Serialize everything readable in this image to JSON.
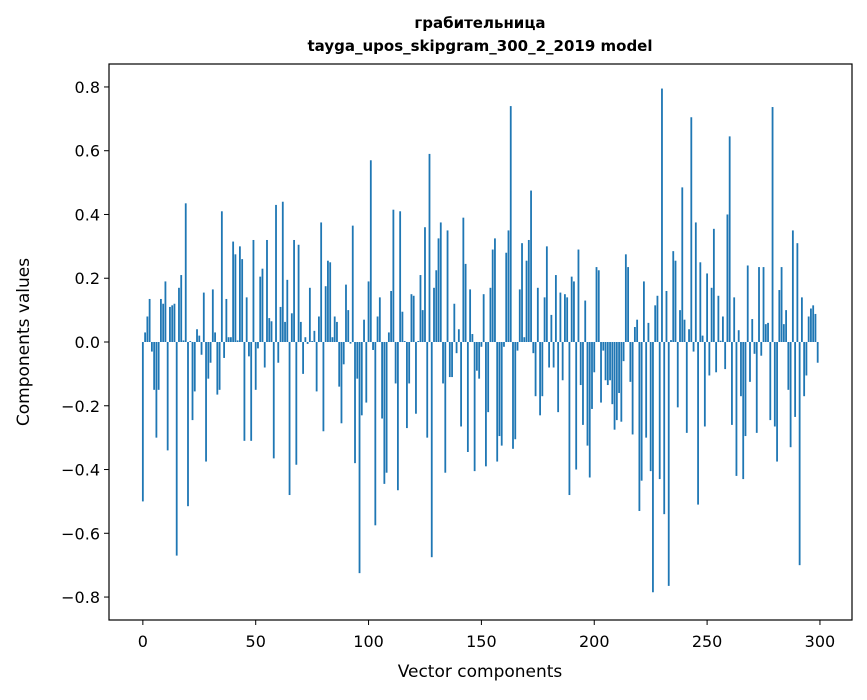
{
  "chart_data": {
    "type": "bar",
    "title": "грабительница",
    "subtitle": "tayga_upos_skipgram_300_2_2019 model",
    "xlabel": "Vector components",
    "ylabel": "Components values",
    "xlim": [
      -15,
      314.2
    ],
    "ylim": [
      -0.872,
      0.872
    ],
    "xticks": [
      0,
      50,
      100,
      150,
      200,
      250,
      300
    ],
    "xtick_labels": [
      "0",
      "50",
      "100",
      "150",
      "200",
      "250",
      "300"
    ],
    "yticks": [
      -0.8,
      -0.6,
      -0.4,
      -0.2,
      0.0,
      0.2,
      0.4,
      0.6,
      0.8
    ],
    "ytick_labels": [
      "−0.8",
      "−0.6",
      "−0.4",
      "−0.2",
      "0.0",
      "0.2",
      "0.4",
      "0.6",
      "0.8"
    ],
    "grid": false,
    "bar_color": "#1f77b4",
    "values": [
      -0.5,
      0.03,
      0.08,
      0.135,
      -0.03,
      -0.15,
      -0.3,
      -0.15,
      0.135,
      0.12,
      0.19,
      -0.34,
      0.11,
      0.115,
      0.12,
      -0.67,
      0.17,
      0.21,
      0.005,
      0.435,
      -0.515,
      0.003,
      -0.245,
      -0.155,
      0.04,
      0.02,
      -0.04,
      0.155,
      -0.375,
      -0.115,
      -0.065,
      0.165,
      0.03,
      -0.165,
      -0.15,
      0.41,
      -0.05,
      0.135,
      0.015,
      0.015,
      0.315,
      0.275,
      0.005,
      0.3,
      0.26,
      -0.31,
      0.14,
      -0.045,
      -0.31,
      0.32,
      -0.15,
      -0.02,
      0.205,
      0.23,
      -0.08,
      0.32,
      0.075,
      0.065,
      -0.365,
      0.43,
      -0.065,
      0.11,
      0.44,
      0.063,
      0.195,
      -0.48,
      0.09,
      0.32,
      -0.385,
      0.305,
      0.063,
      -0.1,
      0.015,
      -0.006,
      0.17,
      0.003,
      0.035,
      -0.155,
      0.08,
      0.375,
      -0.28,
      0.175,
      0.255,
      0.25,
      0.015,
      0.08,
      0.063,
      -0.14,
      -0.255,
      -0.07,
      0.18,
      0.1,
      -0.005,
      0.365,
      -0.38,
      -0.115,
      -0.725,
      -0.23,
      0.07,
      -0.19,
      0.19,
      0.57,
      -0.025,
      -0.575,
      0.08,
      0.14,
      -0.24,
      -0.445,
      -0.41,
      0.03,
      0.16,
      0.415,
      -0.13,
      -0.465,
      0.41,
      0.095,
      0.003,
      -0.27,
      -0.13,
      0.15,
      0.145,
      -0.225,
      0.003,
      0.21,
      0.1,
      0.36,
      -0.3,
      0.59,
      -0.675,
      0.17,
      0.225,
      0.325,
      0.375,
      -0.13,
      -0.41,
      0.35,
      -0.11,
      -0.11,
      0.12,
      -0.035,
      0.04,
      -0.265,
      0.39,
      0.245,
      -0.345,
      0.165,
      0.025,
      -0.405,
      -0.09,
      -0.115,
      -0.015,
      0.15,
      -0.39,
      -0.22,
      0.17,
      0.29,
      0.325,
      -0.375,
      -0.295,
      -0.325,
      -0.015,
      0.28,
      0.35,
      0.74,
      -0.335,
      -0.305,
      -0.027,
      0.165,
      0.31,
      0.015,
      0.255,
      0.32,
      0.475,
      -0.035,
      -0.17,
      0.17,
      -0.23,
      -0.17,
      0.14,
      0.3,
      -0.08,
      0.085,
      -0.08,
      0.21,
      -0.22,
      0.155,
      -0.12,
      0.15,
      0.14,
      -0.48,
      0.205,
      0.19,
      -0.4,
      0.29,
      -0.135,
      -0.26,
      0.13,
      -0.325,
      -0.425,
      -0.21,
      -0.095,
      0.235,
      0.225,
      -0.19,
      -0.027,
      -0.12,
      -0.135,
      -0.12,
      -0.195,
      -0.275,
      -0.245,
      -0.16,
      -0.25,
      -0.06,
      0.275,
      0.235,
      -0.125,
      -0.29,
      0.047,
      0.07,
      -0.53,
      -0.435,
      0.19,
      -0.3,
      0.06,
      -0.405,
      -0.785,
      0.115,
      0.145,
      -0.43,
      0.795,
      -0.54,
      0.16,
      -0.765,
      0.006,
      0.285,
      0.255,
      -0.205,
      0.1,
      0.485,
      0.07,
      -0.285,
      0.04,
      0.705,
      -0.03,
      0.375,
      -0.51,
      0.25,
      0.02,
      -0.265,
      0.215,
      -0.105,
      0.17,
      0.355,
      -0.095,
      0.145,
      0.004,
      0.08,
      -0.085,
      0.4,
      0.645,
      -0.26,
      0.14,
      -0.42,
      0.037,
      -0.17,
      -0.43,
      -0.295,
      0.24,
      -0.125,
      0.072,
      -0.037,
      -0.285,
      0.235,
      -0.043,
      0.235,
      0.056,
      0.06,
      -0.245,
      0.737,
      -0.265,
      -0.375,
      0.163,
      0.235,
      0.056,
      0.1,
      -0.15,
      -0.33,
      0.35,
      -0.235,
      0.31,
      -0.7,
      0.14,
      -0.17,
      -0.105,
      0.08,
      0.105,
      0.115,
      0.088,
      -0.065
    ]
  }
}
